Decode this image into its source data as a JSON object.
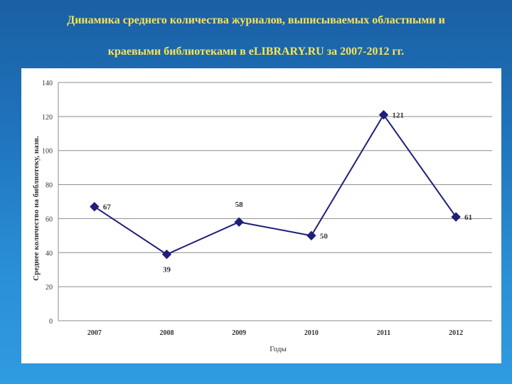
{
  "slide": {
    "title_line1": "Динамика среднего количества журналов, выписываемых областными и",
    "title_line2": "краевыми библиотеками в eLIBRARY.RU за 2007-2012 гг.",
    "title_color": "#f7e45a",
    "background_color": "#1f74be"
  },
  "chart_data": {
    "type": "line",
    "title": "",
    "xlabel": "Годы",
    "ylabel": "Среднее количество на библиотеку, назв.",
    "categories": [
      "2007",
      "2008",
      "2009",
      "2010",
      "2011",
      "2012"
    ],
    "series": [
      {
        "values": [
          67,
          39,
          58,
          50,
          121,
          61
        ],
        "color": "#1f1f7a",
        "marker": "diamond"
      }
    ],
    "data_labels": [
      "67",
      "39",
      "58",
      "50",
      "121",
      "61"
    ],
    "ylim": [
      0,
      140
    ],
    "yticks": [
      0,
      20,
      40,
      60,
      80,
      100,
      120,
      140
    ],
    "grid": true
  }
}
